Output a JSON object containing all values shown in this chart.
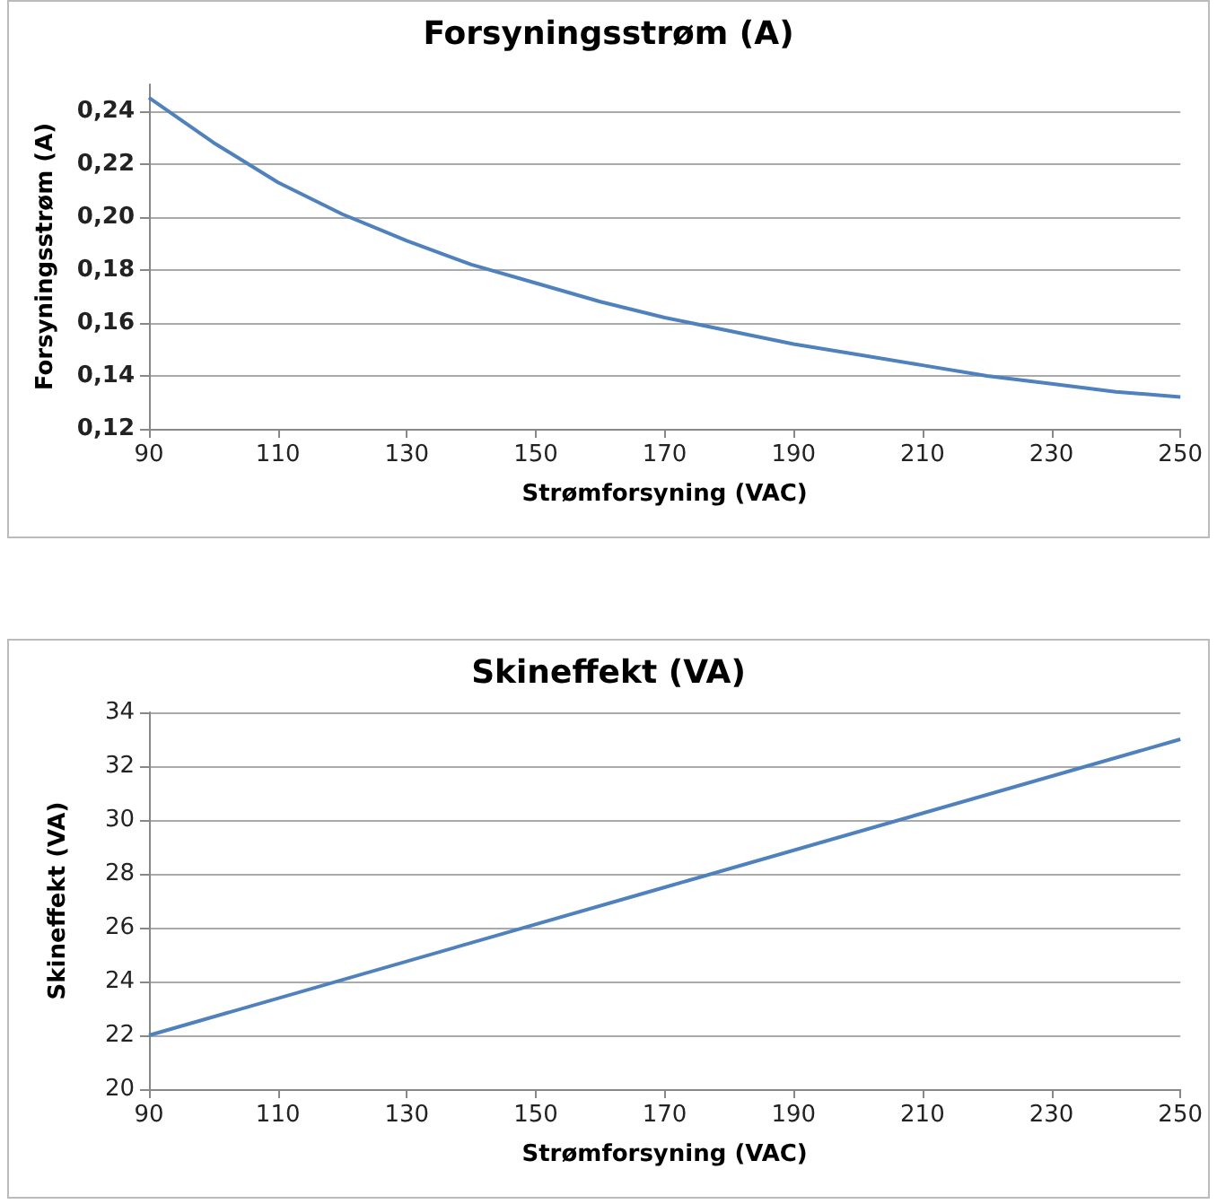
{
  "chart_data": [
    {
      "type": "line",
      "title": "Forsyningsstrøm (A)",
      "xlabel": "Strømforsyning (VAC)",
      "ylabel": "Forsyningsstrøm (A)",
      "x": [
        90,
        100,
        110,
        120,
        130,
        140,
        150,
        160,
        170,
        180,
        190,
        200,
        210,
        220,
        230,
        240,
        250
      ],
      "series": [
        {
          "color": "#4f81bd",
          "values": [
            0.245,
            0.228,
            0.213,
            0.201,
            0.191,
            0.182,
            0.175,
            0.168,
            0.162,
            0.157,
            0.152,
            0.148,
            0.144,
            0.14,
            0.137,
            0.134,
            0.132
          ]
        }
      ],
      "xlim": [
        90,
        250
      ],
      "xticks": [
        90,
        110,
        130,
        150,
        170,
        190,
        210,
        230,
        250
      ],
      "ylim": [
        0.12,
        0.25
      ],
      "yticks": [
        {
          "value": 0.12,
          "label": "0,12"
        },
        {
          "value": 0.14,
          "label": "0,14"
        },
        {
          "value": 0.16,
          "label": "0,16"
        },
        {
          "value": 0.18,
          "label": "0,18"
        },
        {
          "value": 0.2,
          "label": "0,20"
        },
        {
          "value": 0.22,
          "label": "0,22"
        },
        {
          "value": 0.24,
          "label": "0,24"
        }
      ],
      "grid": "y",
      "marker": "none",
      "line_style": "solid"
    },
    {
      "type": "line",
      "title": "Skineffekt (VA)",
      "xlabel": "Strømforsyning (VAC)",
      "ylabel": "Skineffekt (VA)",
      "x": [
        90,
        170,
        250
      ],
      "series": [
        {
          "color": "#4f81bd",
          "values": [
            22,
            27.5,
            33
          ]
        }
      ],
      "xlim": [
        90,
        250
      ],
      "xticks": [
        90,
        110,
        130,
        150,
        170,
        190,
        210,
        230,
        250
      ],
      "ylim": [
        20,
        34
      ],
      "yticks": [
        20,
        22,
        24,
        26,
        28,
        30,
        32,
        34
      ],
      "grid": "y",
      "marker": "none",
      "line_style": "solid"
    }
  ]
}
